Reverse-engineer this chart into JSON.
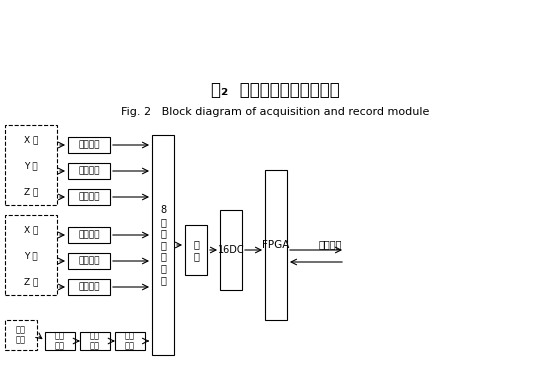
{
  "title_cn": "图₂  采集记录模块组成框图",
  "title_en": "Fig. 2   Block diagram of acquisition and record module",
  "bg_color": "#ffffff",
  "box_color": "#000000",
  "dashed_box_color": "#000000",
  "text_color": "#000000",
  "group1_label": [
    "X 轴",
    "Y 轴",
    "Z 轴"
  ],
  "group2_label": [
    "X 轴",
    "Y 轴",
    "Z 轴"
  ],
  "group3_label": "飞机\n电压",
  "fenyablock": "分压跟随",
  "mux_label": "8\n通\n道\n模\n拟\n开\n关",
  "gensui_label": "跟\n随",
  "adc_label": "16DC",
  "fpga_label": "FPGA",
  "storage_label": "到存储器",
  "fenyabuf": "分压\n跟随",
  "xianxing": "线性\n光耦",
  "gensui_tiaoli": "跟随\n调理"
}
